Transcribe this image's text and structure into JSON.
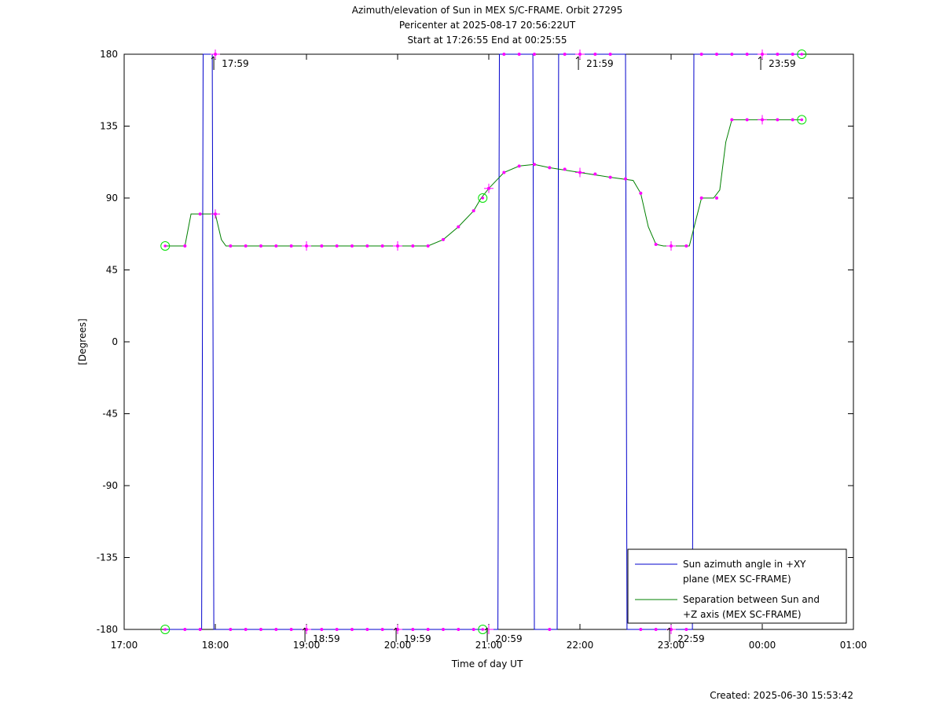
{
  "chart_data": {
    "type": "line",
    "title": [
      "Azimuth/elevation of Sun in MEX S/C-FRAME.  Orbit 27295",
      "Pericenter at 2025-08-17 20:56:22UT",
      "Start at 17:26:55 End at 00:25:55"
    ],
    "xlabel": "Time of day UT",
    "ylabel": "[Degrees]",
    "xlim": [
      "17:00",
      "01:00"
    ],
    "ylim": [
      -180,
      180
    ],
    "x_ticks": [
      "17:00",
      "18:00",
      "19:00",
      "20:00",
      "21:00",
      "22:00",
      "23:00",
      "00:00",
      "01:00"
    ],
    "y_ticks": [
      "180",
      "135",
      "90",
      "45",
      "0",
      "-45",
      "-90",
      "-135",
      "-180"
    ],
    "time_markers": [
      {
        "time": "17:59",
        "label": "17:59",
        "edge": "top"
      },
      {
        "time": "18:59",
        "label": "18:59",
        "edge": "bottom"
      },
      {
        "time": "19:59",
        "label": "19:59",
        "edge": "bottom"
      },
      {
        "time": "20:59",
        "label": "20:59",
        "edge": "bottom"
      },
      {
        "time": "21:59",
        "label": "21:59",
        "edge": "top"
      },
      {
        "time": "22:59",
        "label": "22:59",
        "edge": "bottom"
      },
      {
        "time": "23:59",
        "label": "23:59",
        "edge": "top"
      }
    ],
    "legend_position": "bottom-right",
    "series": [
      {
        "name": "Sun azimuth angle in +XY plane (MEX SC-FRAME)",
        "legend_lines": [
          "Sun azimuth angle in +XY",
          "plane (MEX SC-FRAME)"
        ],
        "color": "#0000cc",
        "points": [
          [
            "17:27",
            -180
          ],
          [
            "17:51",
            -180
          ],
          [
            "17:52",
            180
          ],
          [
            "17:58",
            180
          ],
          [
            "17:59",
            -180
          ],
          [
            "20:53",
            -180
          ],
          [
            "21:06",
            -180
          ],
          [
            "21:07",
            180
          ],
          [
            "21:29",
            180
          ],
          [
            "21:30",
            -180
          ],
          [
            "21:45",
            -180
          ],
          [
            "21:46",
            180
          ],
          [
            "22:30",
            180
          ],
          [
            "22:31",
            -180
          ],
          [
            "23:14",
            -180
          ],
          [
            "23:15",
            180
          ],
          [
            "00:26",
            180
          ]
        ]
      },
      {
        "name": "Separation between Sun and +Z axis (MEX SC-FRAME)",
        "legend_lines": [
          "Separation between Sun and",
          "+Z axis (MEX SC-FRAME)"
        ],
        "color": "#008000",
        "points": [
          [
            "17:27",
            60
          ],
          [
            "17:40",
            60
          ],
          [
            "17:44",
            80
          ],
          [
            "18:00",
            80
          ],
          [
            "18:04",
            64
          ],
          [
            "18:07",
            60
          ],
          [
            "20:20",
            60
          ],
          [
            "20:30",
            64
          ],
          [
            "20:40",
            72
          ],
          [
            "20:50",
            82
          ],
          [
            "20:55",
            90
          ],
          [
            "21:00",
            96
          ],
          [
            "21:10",
            106
          ],
          [
            "21:20",
            110
          ],
          [
            "21:30",
            111
          ],
          [
            "21:40",
            109
          ],
          [
            "22:00",
            106
          ],
          [
            "22:20",
            103
          ],
          [
            "22:35",
            101
          ],
          [
            "22:40",
            93
          ],
          [
            "22:45",
            72
          ],
          [
            "22:50",
            61
          ],
          [
            "22:55",
            60
          ],
          [
            "23:12",
            60
          ],
          [
            "23:16",
            75
          ],
          [
            "23:20",
            90
          ],
          [
            "23:28",
            90
          ],
          [
            "23:32",
            95
          ],
          [
            "23:36",
            125
          ],
          [
            "23:40",
            139
          ],
          [
            "00:26",
            139
          ]
        ]
      }
    ],
    "markers": {
      "color": "#ff00ff",
      "start_end_circles": [
        [
          "17:27",
          60
        ],
        [
          "17:27",
          -180
        ],
        [
          "00:26",
          139
        ],
        [
          "00:26",
          180
        ],
        [
          "20:56",
          90
        ],
        [
          "20:56",
          -180
        ]
      ],
      "series_dots": {
        "separation": [
          [
            "17:40",
            60
          ],
          [
            "17:50",
            80
          ],
          [
            "18:00",
            80
          ],
          [
            "18:10",
            60
          ],
          [
            "18:20",
            60
          ],
          [
            "18:30",
            60
          ],
          [
            "18:40",
            60
          ],
          [
            "18:50",
            60
          ],
          [
            "19:00",
            60
          ],
          [
            "19:10",
            60
          ],
          [
            "19:20",
            60
          ],
          [
            "19:30",
            60
          ],
          [
            "19:40",
            60
          ],
          [
            "19:50",
            60
          ],
          [
            "20:00",
            60
          ],
          [
            "20:10",
            60
          ],
          [
            "20:20",
            60
          ],
          [
            "20:30",
            64
          ],
          [
            "20:40",
            72
          ],
          [
            "20:50",
            82
          ],
          [
            "21:00",
            96
          ],
          [
            "21:10",
            106
          ],
          [
            "21:20",
            110
          ],
          [
            "21:30",
            111
          ],
          [
            "21:40",
            109
          ],
          [
            "21:50",
            108
          ],
          [
            "22:00",
            106
          ],
          [
            "22:10",
            105
          ],
          [
            "22:20",
            103
          ],
          [
            "22:30",
            102
          ],
          [
            "22:40",
            93
          ],
          [
            "22:50",
            61
          ],
          [
            "23:00",
            60
          ],
          [
            "23:10",
            60
          ],
          [
            "23:20",
            90
          ],
          [
            "23:30",
            90
          ],
          [
            "23:40",
            139
          ],
          [
            "23:50",
            139
          ],
          [
            "00:00",
            139
          ],
          [
            "00:10",
            139
          ],
          [
            "00:20",
            139
          ]
        ],
        "azimuth": [
          [
            "17:40",
            -180
          ],
          [
            "17:50",
            -180
          ],
          [
            "18:00",
            180
          ],
          [
            "18:10",
            -180
          ],
          [
            "18:20",
            -180
          ],
          [
            "18:30",
            -180
          ],
          [
            "18:40",
            -180
          ],
          [
            "18:50",
            -180
          ],
          [
            "19:00",
            -180
          ],
          [
            "19:10",
            -180
          ],
          [
            "19:20",
            -180
          ],
          [
            "19:30",
            -180
          ],
          [
            "19:40",
            -180
          ],
          [
            "19:50",
            -180
          ],
          [
            "20:00",
            -180
          ],
          [
            "20:10",
            -180
          ],
          [
            "20:20",
            -180
          ],
          [
            "20:30",
            -180
          ],
          [
            "20:40",
            -180
          ],
          [
            "20:50",
            -180
          ],
          [
            "21:10",
            180
          ],
          [
            "21:20",
            180
          ],
          [
            "21:30",
            180
          ],
          [
            "21:40",
            -180
          ],
          [
            "21:50",
            180
          ],
          [
            "22:00",
            180
          ],
          [
            "22:10",
            180
          ],
          [
            "22:20",
            180
          ],
          [
            "22:40",
            -180
          ],
          [
            "22:50",
            -180
          ],
          [
            "23:00",
            -180
          ],
          [
            "23:10",
            -180
          ],
          [
            "23:20",
            180
          ],
          [
            "23:30",
            180
          ],
          [
            "23:40",
            180
          ],
          [
            "23:50",
            180
          ],
          [
            "00:00",
            180
          ],
          [
            "00:10",
            180
          ],
          [
            "00:20",
            180
          ]
        ]
      },
      "hour_crosses": [
        [
          "18:00",
          80
        ],
        [
          "18:00",
          180
        ],
        [
          "19:00",
          60
        ],
        [
          "19:00",
          -180
        ],
        [
          "20:00",
          60
        ],
        [
          "20:00",
          -180
        ],
        [
          "21:00",
          96
        ],
        [
          "21:00",
          -180
        ],
        [
          "22:00",
          106
        ],
        [
          "22:00",
          180
        ],
        [
          "23:00",
          60
        ],
        [
          "23:00",
          -180
        ],
        [
          "00:00",
          139
        ],
        [
          "00:00",
          180
        ]
      ]
    }
  },
  "footer": {
    "created": "Created: 2025-06-30 15:53:42"
  }
}
